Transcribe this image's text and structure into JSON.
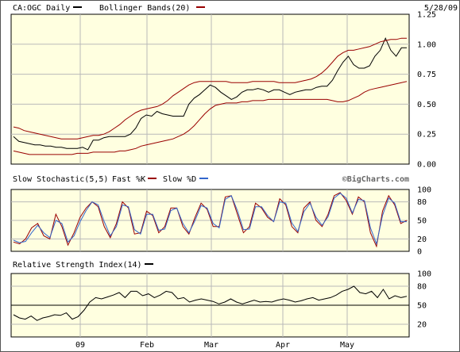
{
  "chart_data": [
    {
      "type": "line",
      "panel": "price",
      "title": "CA:OGC Daily",
      "date": "5/28/09",
      "legend": [
        {
          "name": "CA:OGC Daily",
          "color": "#000000"
        },
        {
          "name": "Bollinger Bands(20)",
          "color": "#990000"
        }
      ],
      "ylim": [
        0,
        1.25
      ],
      "yticks": [
        "0.00",
        "0.25",
        "0.50",
        "0.75",
        "1.00",
        "1.25"
      ],
      "xtick_labels": [
        "09",
        "Feb",
        "Mar",
        "Apr",
        "May"
      ],
      "grid": true,
      "series": [
        {
          "name": "CA:OGC Daily",
          "values": [
            0.23,
            0.19,
            0.18,
            0.17,
            0.16,
            0.16,
            0.15,
            0.15,
            0.14,
            0.14,
            0.13,
            0.13,
            0.13,
            0.14,
            0.12,
            0.2,
            0.2,
            0.22,
            0.23,
            0.23,
            0.23,
            0.23,
            0.25,
            0.3,
            0.38,
            0.41,
            0.4,
            0.44,
            0.42,
            0.41,
            0.4,
            0.4,
            0.4,
            0.5,
            0.55,
            0.58,
            0.62,
            0.66,
            0.64,
            0.6,
            0.57,
            0.54,
            0.56,
            0.6,
            0.62,
            0.62,
            0.63,
            0.62,
            0.6,
            0.62,
            0.62,
            0.6,
            0.58,
            0.6,
            0.61,
            0.62,
            0.62,
            0.64,
            0.65,
            0.65,
            0.7,
            0.78,
            0.85,
            0.9,
            0.83,
            0.8,
            0.8,
            0.82,
            0.9,
            0.95,
            1.05,
            0.95,
            0.9,
            0.97,
            0.97
          ]
        },
        {
          "name": "Bollinger Bands(20) upper",
          "values": [
            0.31,
            0.3,
            0.28,
            0.27,
            0.26,
            0.25,
            0.24,
            0.23,
            0.22,
            0.21,
            0.21,
            0.21,
            0.21,
            0.22,
            0.23,
            0.24,
            0.24,
            0.25,
            0.27,
            0.3,
            0.33,
            0.37,
            0.4,
            0.43,
            0.45,
            0.46,
            0.47,
            0.48,
            0.5,
            0.53,
            0.57,
            0.6,
            0.63,
            0.66,
            0.68,
            0.69,
            0.69,
            0.69,
            0.69,
            0.69,
            0.69,
            0.68,
            0.68,
            0.68,
            0.68,
            0.69,
            0.69,
            0.69,
            0.69,
            0.69,
            0.68,
            0.68,
            0.68,
            0.68,
            0.69,
            0.7,
            0.71,
            0.73,
            0.76,
            0.8,
            0.85,
            0.9,
            0.93,
            0.95,
            0.95,
            0.96,
            0.97,
            0.98,
            1.0,
            1.02,
            1.03,
            1.04,
            1.04,
            1.05,
            1.05
          ]
        },
        {
          "name": "Bollinger Bands(20) lower",
          "values": [
            0.11,
            0.1,
            0.09,
            0.08,
            0.08,
            0.08,
            0.08,
            0.08,
            0.08,
            0.08,
            0.08,
            0.08,
            0.09,
            0.09,
            0.09,
            0.1,
            0.1,
            0.1,
            0.1,
            0.1,
            0.11,
            0.11,
            0.12,
            0.13,
            0.15,
            0.16,
            0.17,
            0.18,
            0.19,
            0.2,
            0.21,
            0.23,
            0.25,
            0.28,
            0.32,
            0.37,
            0.42,
            0.46,
            0.49,
            0.5,
            0.51,
            0.51,
            0.51,
            0.52,
            0.52,
            0.53,
            0.53,
            0.53,
            0.54,
            0.54,
            0.54,
            0.54,
            0.54,
            0.54,
            0.54,
            0.54,
            0.54,
            0.54,
            0.54,
            0.54,
            0.53,
            0.52,
            0.52,
            0.53,
            0.55,
            0.57,
            0.6,
            0.62,
            0.63,
            0.64,
            0.65,
            0.66,
            0.67,
            0.68,
            0.69
          ]
        }
      ]
    },
    {
      "type": "line",
      "panel": "stochastic",
      "title": "Slow Stochastic(5,5)",
      "credit": "©BigCharts.com",
      "legend": [
        {
          "name": "Fast %K",
          "color": "#990000"
        },
        {
          "name": "Slow %D",
          "color": "#3366cc"
        }
      ],
      "ylim": [
        0,
        100
      ],
      "yticks": [
        "0",
        "20",
        "50",
        "80",
        "100"
      ],
      "grid": true,
      "series": [
        {
          "name": "Fast %K",
          "values": [
            15,
            12,
            20,
            38,
            45,
            25,
            20,
            60,
            40,
            10,
            30,
            55,
            70,
            80,
            72,
            40,
            22,
            45,
            80,
            70,
            28,
            30,
            65,
            58,
            30,
            40,
            70,
            70,
            40,
            28,
            55,
            78,
            68,
            40,
            40,
            88,
            90,
            60,
            30,
            40,
            78,
            70,
            55,
            48,
            85,
            75,
            40,
            30,
            70,
            80,
            50,
            40,
            60,
            90,
            95,
            82,
            60,
            88,
            80,
            30,
            8,
            65,
            90,
            75,
            45,
            50
          ]
        },
        {
          "name": "Slow %D",
          "values": [
            18,
            14,
            16,
            30,
            42,
            30,
            22,
            50,
            45,
            15,
            25,
            48,
            66,
            80,
            75,
            48,
            25,
            40,
            75,
            72,
            35,
            28,
            60,
            60,
            34,
            36,
            66,
            70,
            45,
            30,
            50,
            74,
            70,
            45,
            38,
            84,
            90,
            66,
            35,
            36,
            72,
            72,
            58,
            48,
            80,
            78,
            46,
            32,
            64,
            78,
            55,
            42,
            56,
            86,
            94,
            86,
            62,
            84,
            82,
            38,
            12,
            58,
            86,
            78,
            48,
            48
          ]
        }
      ]
    },
    {
      "type": "line",
      "panel": "rsi",
      "title": "Relative Strength Index(14)",
      "legend": [
        {
          "name": "Relative Strength Index(14)",
          "color": "#000000"
        }
      ],
      "ylim": [
        0,
        100
      ],
      "yticks": [
        "20",
        "50",
        "80",
        "100"
      ],
      "reference_line": 50,
      "grid": true,
      "series": [
        {
          "name": "Relative Strength Index(14)",
          "values": [
            35,
            30,
            28,
            33,
            26,
            30,
            32,
            35,
            34,
            38,
            28,
            32,
            42,
            55,
            62,
            60,
            63,
            66,
            70,
            62,
            72,
            72,
            65,
            68,
            62,
            66,
            72,
            70,
            60,
            62,
            55,
            58,
            60,
            58,
            56,
            52,
            55,
            60,
            55,
            52,
            55,
            58,
            55,
            56,
            55,
            58,
            60,
            58,
            55,
            57,
            60,
            62,
            58,
            60,
            62,
            66,
            72,
            75,
            80,
            70,
            68,
            72,
            62,
            75,
            60,
            65,
            62,
            64
          ]
        }
      ]
    }
  ]
}
